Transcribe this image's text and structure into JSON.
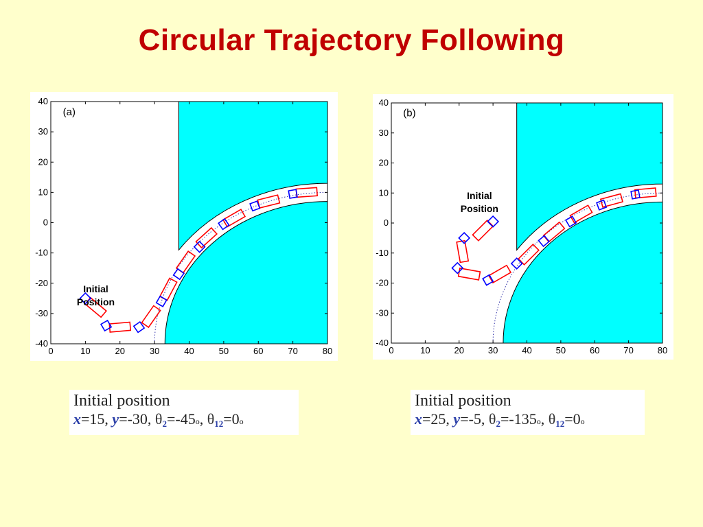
{
  "title": "Circular Trajectory Following",
  "colors": {
    "background": "#ffffcc",
    "title": "#c00000",
    "obstacle": "#00ffff",
    "trailer": "#ff0000",
    "tractor": "#0000ff"
  },
  "chart_data": [
    {
      "type": "scatter",
      "panel_label": "(a)",
      "xlim": [
        0,
        80
      ],
      "ylim": [
        -40,
        40
      ],
      "xticks": [
        "0",
        "10",
        "20",
        "30",
        "40",
        "50",
        "60",
        "70",
        "80"
      ],
      "yticks": [
        "40",
        "30",
        "20",
        "10",
        "0",
        "-10",
        "-20",
        "-30",
        "-40"
      ],
      "grid": false,
      "annotation": [
        "Initial",
        "Position"
      ],
      "annotation_at": [
        13,
        -23
      ],
      "road": {
        "center": [
          80,
          -40
        ],
        "inner_radius": 47,
        "outer_radius": 53,
        "centerline_radius": 50
      },
      "upper_wall_x": 37,
      "trailers": [
        {
          "x": 13,
          "y": -28,
          "angle": -40
        },
        {
          "x": 20,
          "y": -34.5,
          "angle": 5
        },
        {
          "x": 29,
          "y": -31,
          "angle": 55
        },
        {
          "x": 34,
          "y": -22,
          "angle": 62
        },
        {
          "x": 39,
          "y": -13,
          "angle": 55
        },
        {
          "x": 45,
          "y": -5,
          "angle": 42
        },
        {
          "x": 53,
          "y": 1.5,
          "angle": 30
        },
        {
          "x": 63,
          "y": 7,
          "angle": 14
        },
        {
          "x": 74,
          "y": 10,
          "angle": 4
        }
      ],
      "tractors": [
        {
          "x": 10,
          "y": -25,
          "angle": 45
        },
        {
          "x": 16,
          "y": -34,
          "angle": 30
        },
        {
          "x": 25.5,
          "y": -34.5,
          "angle": 35
        },
        {
          "x": 32,
          "y": -26,
          "angle": 60
        },
        {
          "x": 37,
          "y": -17,
          "angle": 55
        },
        {
          "x": 43,
          "y": -8,
          "angle": 45
        },
        {
          "x": 50,
          "y": -0.5,
          "angle": 35
        },
        {
          "x": 59,
          "y": 5.5,
          "angle": 20
        },
        {
          "x": 70,
          "y": 9.5,
          "angle": 10
        }
      ]
    },
    {
      "type": "scatter",
      "panel_label": "(b)",
      "xlim": [
        0,
        80
      ],
      "ylim": [
        -40,
        40
      ],
      "xticks": [
        "0",
        "10",
        "20",
        "30",
        "40",
        "50",
        "60",
        "70",
        "80"
      ],
      "yticks": [
        "40",
        "30",
        "20",
        "10",
        "0",
        "-10",
        "-20",
        "-30",
        "-40"
      ],
      "grid": false,
      "annotation": [
        "Initial",
        "Position"
      ],
      "annotation_at": [
        26,
        8
      ],
      "road": {
        "center": [
          80,
          -40
        ],
        "inner_radius": 47,
        "outer_radius": 53,
        "centerline_radius": 50
      },
      "upper_wall_x": 37,
      "trailers": [
        {
          "x": 27,
          "y": -2.5,
          "angle": 45
        },
        {
          "x": 21,
          "y": -9.5,
          "angle": 100
        },
        {
          "x": 23,
          "y": -17,
          "angle": 170
        },
        {
          "x": 32,
          "y": -17,
          "angle": 30
        },
        {
          "x": 40.5,
          "y": -10.5,
          "angle": 45
        },
        {
          "x": 48,
          "y": -3,
          "angle": 40
        },
        {
          "x": 56,
          "y": 3,
          "angle": 30
        },
        {
          "x": 65,
          "y": 7.5,
          "angle": 15
        },
        {
          "x": 75,
          "y": 10,
          "angle": 5
        }
      ],
      "tractors": [
        {
          "x": 30,
          "y": 0.5,
          "angle": 45
        },
        {
          "x": 21.5,
          "y": -5,
          "angle": 45
        },
        {
          "x": 19.5,
          "y": -15,
          "angle": 45
        },
        {
          "x": 28.5,
          "y": -19,
          "angle": 30
        },
        {
          "x": 37,
          "y": -13.5,
          "angle": 45
        },
        {
          "x": 45,
          "y": -6,
          "angle": 40
        },
        {
          "x": 53,
          "y": 0.5,
          "angle": 30
        },
        {
          "x": 62,
          "y": 6,
          "angle": 20
        },
        {
          "x": 72,
          "y": 9.5,
          "angle": 10
        }
      ]
    }
  ],
  "captions": [
    {
      "title": "Initial position",
      "x_var": "x",
      "x_val": "=15, ",
      "y_var": "y",
      "y_val": "=-30, ",
      "t2": "θ",
      "t2_sub": "2",
      "t2_val": "=-45",
      "deg": "o",
      "t12": "θ",
      "t12_sub": "12",
      "t12_val": "=0",
      "sep": ", "
    },
    {
      "title": "Initial position",
      "x_var": "x",
      "x_val": "=25, ",
      "y_var": "y",
      "y_val": "=-5, ",
      "t2": "θ",
      "t2_sub": "2",
      "t2_val": "=-135",
      "deg": "o",
      "t12": "θ",
      "t12_sub": "12",
      "t12_val": "=0",
      "sep": ", "
    }
  ]
}
